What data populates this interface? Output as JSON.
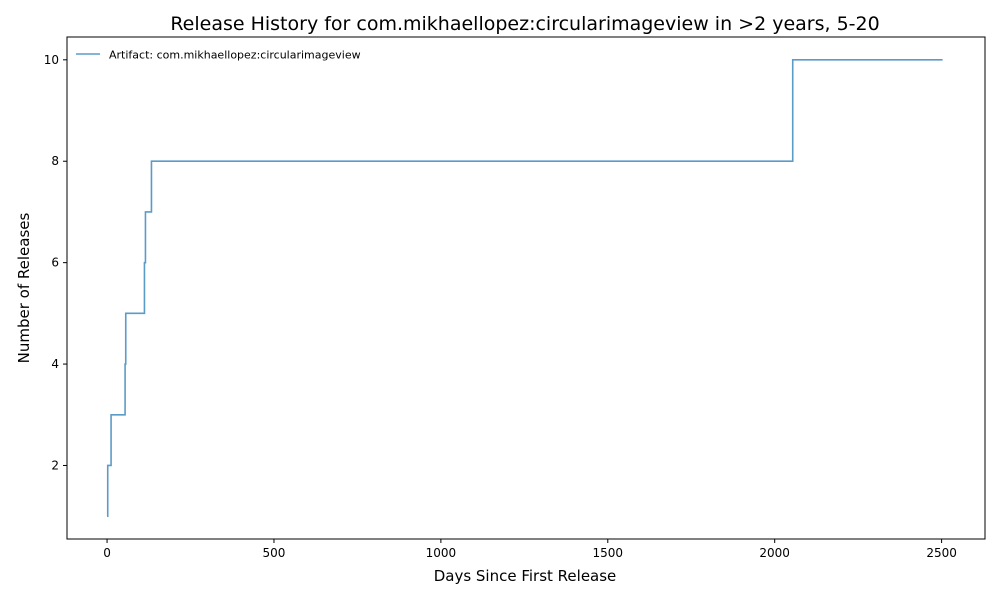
{
  "chart_data": {
    "type": "line",
    "step": true,
    "title": "Release History for com.mikhaellopez:circularimageview in >2 years, 5-20",
    "xlabel": "Days Since First Release",
    "ylabel": "Number of Releases",
    "xlim": [
      -120,
      2630
    ],
    "ylim": [
      0.55,
      10.45
    ],
    "xticks": [
      0,
      500,
      1000,
      1500,
      2000,
      2500
    ],
    "yticks": [
      2,
      4,
      6,
      8,
      10
    ],
    "grid": false,
    "legend_position": "top-left",
    "series": [
      {
        "name": "Artifact: com.mikhaellopez:circularimageview",
        "color": "#5b9bc8",
        "x": [
          0,
          2,
          12,
          54,
          56,
          112,
          115,
          133,
          2054,
          2503
        ],
        "y": [
          1,
          2,
          3,
          4,
          5,
          6,
          7,
          8,
          10,
          10
        ]
      }
    ]
  }
}
